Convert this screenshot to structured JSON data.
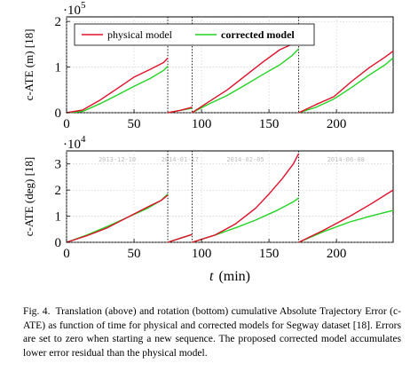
{
  "colors": {
    "physical": "#e0102a",
    "corrected": "#22d422",
    "grid": "#c8c8c8"
  },
  "legend": {
    "physical_label": "physical model",
    "corrected_label": "corrected model"
  },
  "caption": {
    "label": "Fig. 4.",
    "text": "Translation (above) and rotation (bottom) cumulative Absolute Trajectory Error (c-ATE) as function of time for physical and corrected models for Segway dataset [18]. Errors are set to zero when starting a new sequence. The proposed corrected model accumulates lower error residual than the physical model."
  },
  "sequences": {
    "labels": [
      "2013-12-10",
      "2014-01-17",
      "2014-02-05",
      "2014-06-08"
    ]
  },
  "chart_data": [
    {
      "type": "line",
      "ylabel": "c-ATE (m) [18]",
      "y_multiplier": "·10^5",
      "y_multiplier_base": "·10",
      "y_multiplier_exp": "5",
      "xlim": [
        0,
        242
      ],
      "ylim": [
        0,
        2.1
      ],
      "x_ticks": [
        0,
        50,
        100,
        150,
        200
      ],
      "y_ticks": [
        0,
        1,
        2
      ],
      "grid": true,
      "legend_position": "top-left",
      "sequence_boundaries": [
        75,
        93,
        172
      ],
      "series": [
        {
          "name": "physical model",
          "segments": [
            {
              "x": [
                0,
                12,
                25,
                37,
                50,
                62,
                72,
                75
              ],
              "y": [
                0,
                0.06,
                0.28,
                0.52,
                0.78,
                0.95,
                1.1,
                1.2
              ]
            },
            {
              "x": [
                75,
                84,
                93
              ],
              "y": [
                0,
                0.05,
                0.12
              ]
            },
            {
              "x": [
                93,
                106,
                119,
                132,
                145,
                158,
                167,
                172
              ],
              "y": [
                0,
                0.25,
                0.5,
                0.8,
                1.1,
                1.38,
                1.5,
                1.55
              ]
            },
            {
              "x": [
                172,
                185,
                198,
                211,
                224,
                236,
                242
              ],
              "y": [
                0,
                0.18,
                0.35,
                0.68,
                0.98,
                1.22,
                1.35
              ]
            }
          ]
        },
        {
          "name": "corrected model",
          "segments": [
            {
              "x": [
                0,
                12,
                25,
                37,
                50,
                62,
                72,
                75
              ],
              "y": [
                0,
                0.03,
                0.2,
                0.38,
                0.58,
                0.75,
                0.93,
                1.02
              ]
            },
            {
              "x": [
                75,
                84,
                93
              ],
              "y": [
                0,
                0.05,
                0.1
              ]
            },
            {
              "x": [
                93,
                106,
                119,
                132,
                145,
                158,
                167,
                172
              ],
              "y": [
                0,
                0.2,
                0.38,
                0.6,
                0.83,
                1.05,
                1.25,
                1.4
              ]
            },
            {
              "x": [
                172,
                185,
                198,
                211,
                224,
                236,
                242
              ],
              "y": [
                0,
                0.12,
                0.3,
                0.55,
                0.82,
                1.05,
                1.2
              ]
            }
          ]
        }
      ]
    },
    {
      "type": "line",
      "ylabel": "c-ATE (deg) [18]",
      "y_multiplier": "·10^4",
      "y_multiplier_base": "·10",
      "y_multiplier_exp": "4",
      "xlabel_var": "t",
      "xlabel_unit": "(min)",
      "xlim": [
        0,
        242
      ],
      "ylim": [
        0,
        3.5
      ],
      "x_ticks": [
        0,
        50,
        100,
        150,
        200
      ],
      "y_ticks": [
        0,
        1,
        2,
        3
      ],
      "grid": true,
      "sequence_boundaries": [
        75,
        93,
        172
      ],
      "series": [
        {
          "name": "physical model",
          "segments": [
            {
              "x": [
                0,
                15,
                30,
                45,
                60,
                70,
                75
              ],
              "y": [
                0,
                0.25,
                0.55,
                0.95,
                1.35,
                1.6,
                1.8
              ]
            },
            {
              "x": [
                75,
                84,
                93
              ],
              "y": [
                0,
                0.15,
                0.3
              ]
            },
            {
              "x": [
                93,
                110,
                125,
                140,
                150,
                160,
                168,
                172
              ],
              "y": [
                0,
                0.28,
                0.7,
                1.3,
                1.85,
                2.45,
                3.0,
                3.4
              ]
            },
            {
              "x": [
                172,
                190,
                210,
                225,
                242
              ],
              "y": [
                0,
                0.45,
                1.0,
                1.45,
                2.0
              ]
            }
          ]
        },
        {
          "name": "corrected model",
          "segments": [
            {
              "x": [
                0,
                15,
                30,
                45,
                60,
                70,
                75
              ],
              "y": [
                0,
                0.28,
                0.6,
                0.95,
                1.3,
                1.6,
                1.85
              ]
            },
            {
              "x": [
                75,
                84,
                93
              ],
              "y": [
                0,
                0.15,
                0.3
              ]
            },
            {
              "x": [
                93,
                110,
                125,
                140,
                155,
                168,
                172
              ],
              "y": [
                0,
                0.28,
                0.55,
                0.85,
                1.2,
                1.55,
                1.7
              ]
            },
            {
              "x": [
                172,
                190,
                210,
                225,
                242
              ],
              "y": [
                0,
                0.4,
                0.78,
                1.0,
                1.22
              ]
            }
          ]
        }
      ]
    }
  ]
}
